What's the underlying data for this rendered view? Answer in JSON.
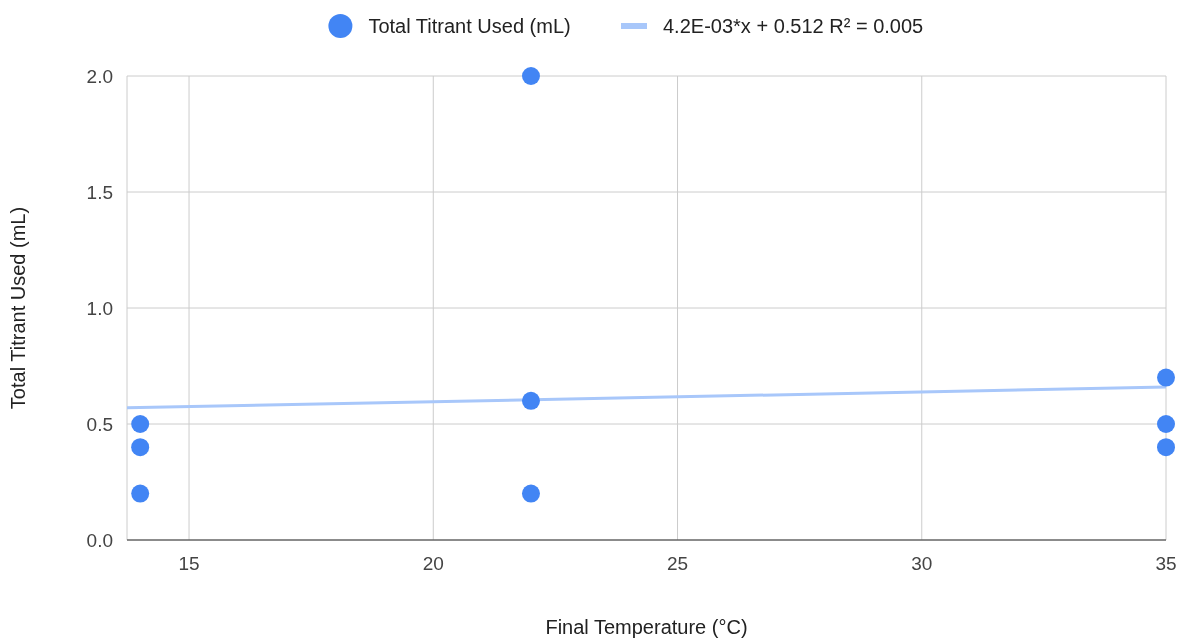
{
  "chart_data": {
    "type": "scatter",
    "xlabel": "Final Temperature (°C)",
    "ylabel": "Total Titrant Used (mL)",
    "xlim": [
      13.73,
      35
    ],
    "xticks": [
      15,
      20,
      25,
      30,
      35
    ],
    "ylim": [
      0,
      2
    ],
    "yticks": [
      {
        "value": 0,
        "label": "0.0"
      },
      {
        "value": 0.5,
        "label": "0.5"
      },
      {
        "value": 1,
        "label": "1.0"
      },
      {
        "value": 1.5,
        "label": "1.5"
      },
      {
        "value": 2,
        "label": "2.0"
      }
    ],
    "grid": true,
    "legend": "top",
    "marker": "circle",
    "series": [
      {
        "name": "Total Titrant Used (mL)",
        "color": "#4285f4",
        "x": [
          14,
          14,
          14,
          22,
          22,
          22,
          35,
          35,
          35
        ],
        "values": [
          0.5,
          0.4,
          0.2,
          2.0,
          0.6,
          0.2,
          0.7,
          0.5,
          0.4
        ]
      },
      {
        "name": "4.2E-03*x + 0.512 R² = 0.005",
        "color": "#a8c7fa",
        "type": "line",
        "marker": "none",
        "x": [
          13.73,
          35
        ],
        "values": [
          0.57,
          0.659
        ]
      }
    ]
  }
}
